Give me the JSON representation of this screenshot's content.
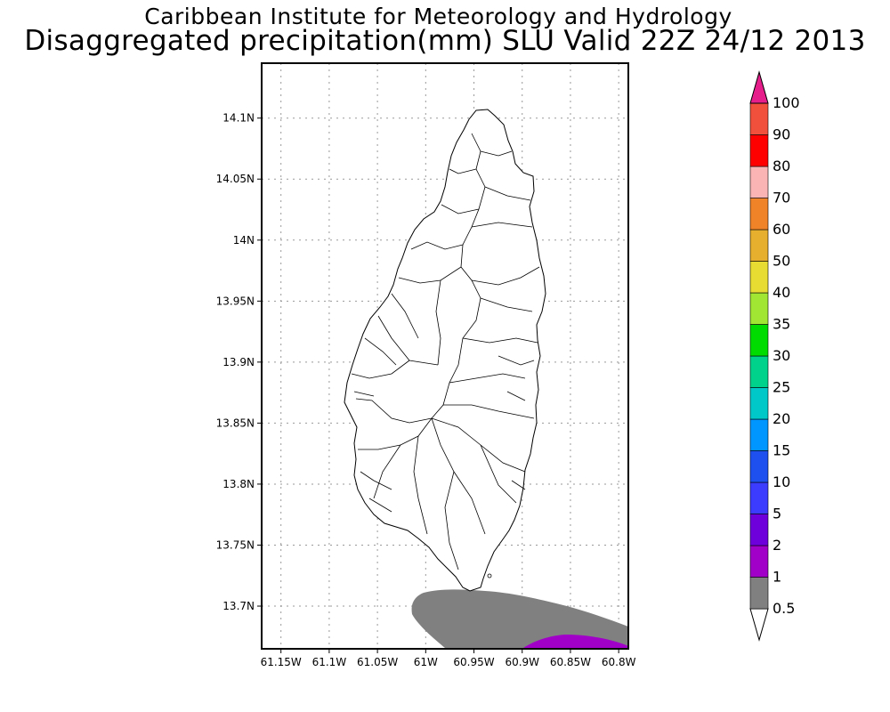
{
  "title_line1": "Caribbean Institute for Meteorology and Hydrology",
  "title_line2": "Disaggregated precipitation(mm) SLU Valid 22Z 24/12 2013",
  "map": {
    "lon_range": [
      -61.17,
      -60.79
    ],
    "lat_range": [
      13.665,
      14.145
    ],
    "lat_ticks": [
      {
        "value": 14.1,
        "label": "14.1N"
      },
      {
        "value": 14.05,
        "label": "14.05N"
      },
      {
        "value": 14.0,
        "label": "14N"
      },
      {
        "value": 13.95,
        "label": "13.95N"
      },
      {
        "value": 13.9,
        "label": "13.9N"
      },
      {
        "value": 13.85,
        "label": "13.85N"
      },
      {
        "value": 13.8,
        "label": "13.8N"
      },
      {
        "value": 13.75,
        "label": "13.75N"
      },
      {
        "value": 13.7,
        "label": "13.7N"
      }
    ],
    "lon_ticks": [
      {
        "value": -61.15,
        "label": "61.15W"
      },
      {
        "value": -61.1,
        "label": "61.1W"
      },
      {
        "value": -61.05,
        "label": "61.05W"
      },
      {
        "value": -61.0,
        "label": "61W"
      },
      {
        "value": -60.95,
        "label": "60.95W"
      },
      {
        "value": -60.9,
        "label": "60.9W"
      },
      {
        "value": -60.85,
        "label": "60.85W"
      },
      {
        "value": -60.8,
        "label": "60.8W"
      }
    ],
    "grid": true
  },
  "colorbar": {
    "levels": [
      "0.5",
      "1",
      "2",
      "5",
      "10",
      "15",
      "20",
      "25",
      "30",
      "35",
      "40",
      "50",
      "60",
      "70",
      "80",
      "90",
      "100"
    ],
    "colors": [
      "#808080",
      "#a000c8",
      "#6e00dc",
      "#3c3cff",
      "#1e50f0",
      "#0096ff",
      "#00c8c8",
      "#00d28c",
      "#00dc00",
      "#a0e632",
      "#e6dc32",
      "#e6af2d",
      "#f08228",
      "#fab4b4",
      "#ff0000",
      "#f0503c",
      "#e61e8c"
    ],
    "under_color": "#ffffff",
    "over_color": "#e61e8c"
  }
}
